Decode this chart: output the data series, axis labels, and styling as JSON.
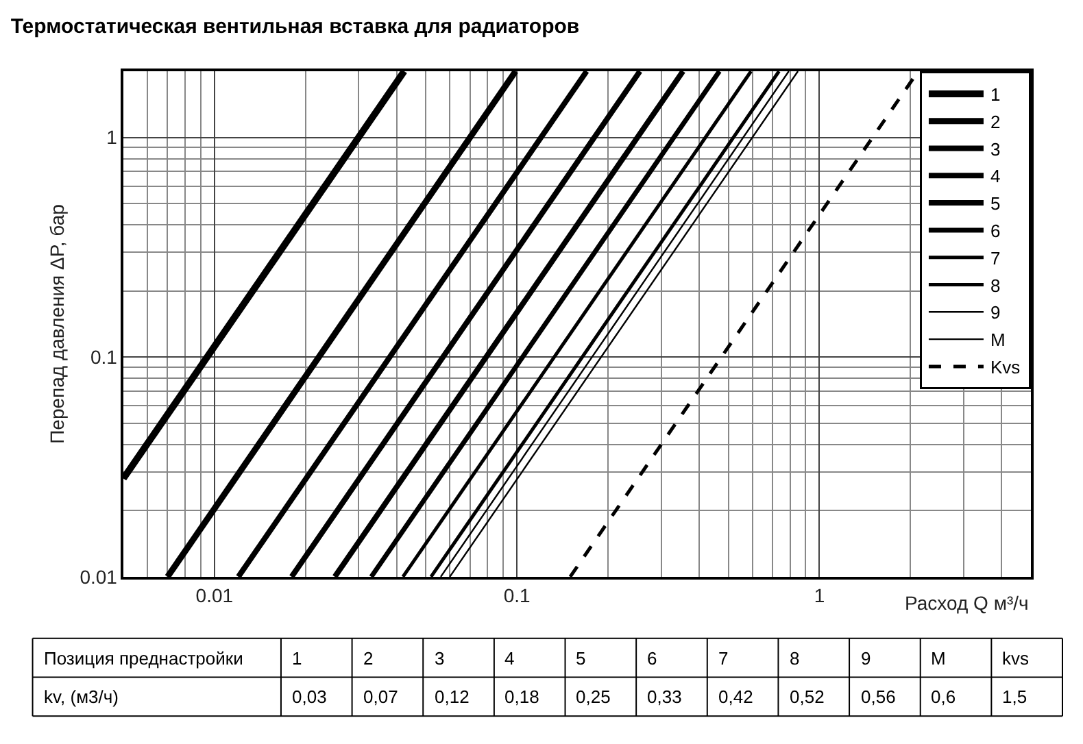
{
  "chart_data": {
    "type": "line",
    "title": "Термостатическая вентильная вставка для радиаторов",
    "xlabel": "Расход Q м³/ч",
    "ylabel": "Перепад давления ΔP, бар",
    "log": "xy",
    "grid": true,
    "legend": "top right",
    "marker": "none",
    "xlim": [
      0.005,
      5
    ],
    "ylim": [
      0.01,
      2
    ],
    "xticks": [
      0.01,
      0.1,
      1
    ],
    "yticks": [
      0.01,
      0.1,
      1
    ],
    "series": [
      {
        "name": "1",
        "color": "#000000",
        "x": [
          0.005,
          0.0424
        ],
        "values": [
          0.028,
          2
        ]
      },
      {
        "name": "2",
        "color": "#000000",
        "x": [
          0.007,
          0.099
        ],
        "values": [
          0.01,
          2
        ]
      },
      {
        "name": "3",
        "color": "#000000",
        "x": [
          0.012,
          0.17
        ],
        "values": [
          0.01,
          2
        ]
      },
      {
        "name": "4",
        "color": "#000000",
        "x": [
          0.018,
          0.255
        ],
        "values": [
          0.01,
          2
        ]
      },
      {
        "name": "5",
        "color": "#000000",
        "x": [
          0.025,
          0.354
        ],
        "values": [
          0.01,
          2
        ]
      },
      {
        "name": "6",
        "color": "#000000",
        "x": [
          0.033,
          0.467
        ],
        "values": [
          0.01,
          2
        ]
      },
      {
        "name": "7",
        "color": "#000000",
        "x": [
          0.042,
          0.594
        ],
        "values": [
          0.01,
          2
        ]
      },
      {
        "name": "8",
        "color": "#000000",
        "x": [
          0.052,
          0.735
        ],
        "values": [
          0.01,
          2
        ]
      },
      {
        "name": "9",
        "color": "#000000",
        "x": [
          0.056,
          0.792
        ],
        "values": [
          0.01,
          2
        ]
      },
      {
        "name": "M",
        "color": "#000000",
        "x": [
          0.06,
          0.849
        ],
        "values": [
          0.01,
          2
        ]
      },
      {
        "name": "Kvs",
        "color": "#000000",
        "line_style": "dashed",
        "x": [
          0.15,
          2.12
        ],
        "values": [
          0.01,
          2
        ]
      }
    ],
    "annotations": [
      "Позиция преднастройки",
      "1",
      "2",
      "3",
      "4",
      "5",
      "6",
      "7",
      "8",
      "9",
      "M",
      "kvs",
      "kv, (м3/ч)",
      "0,03",
      "0,07",
      "0,12",
      "0,18",
      "0,25",
      "0,33",
      "0,42",
      "0,52",
      "0,56",
      "0,6",
      "1,5"
    ]
  }
}
